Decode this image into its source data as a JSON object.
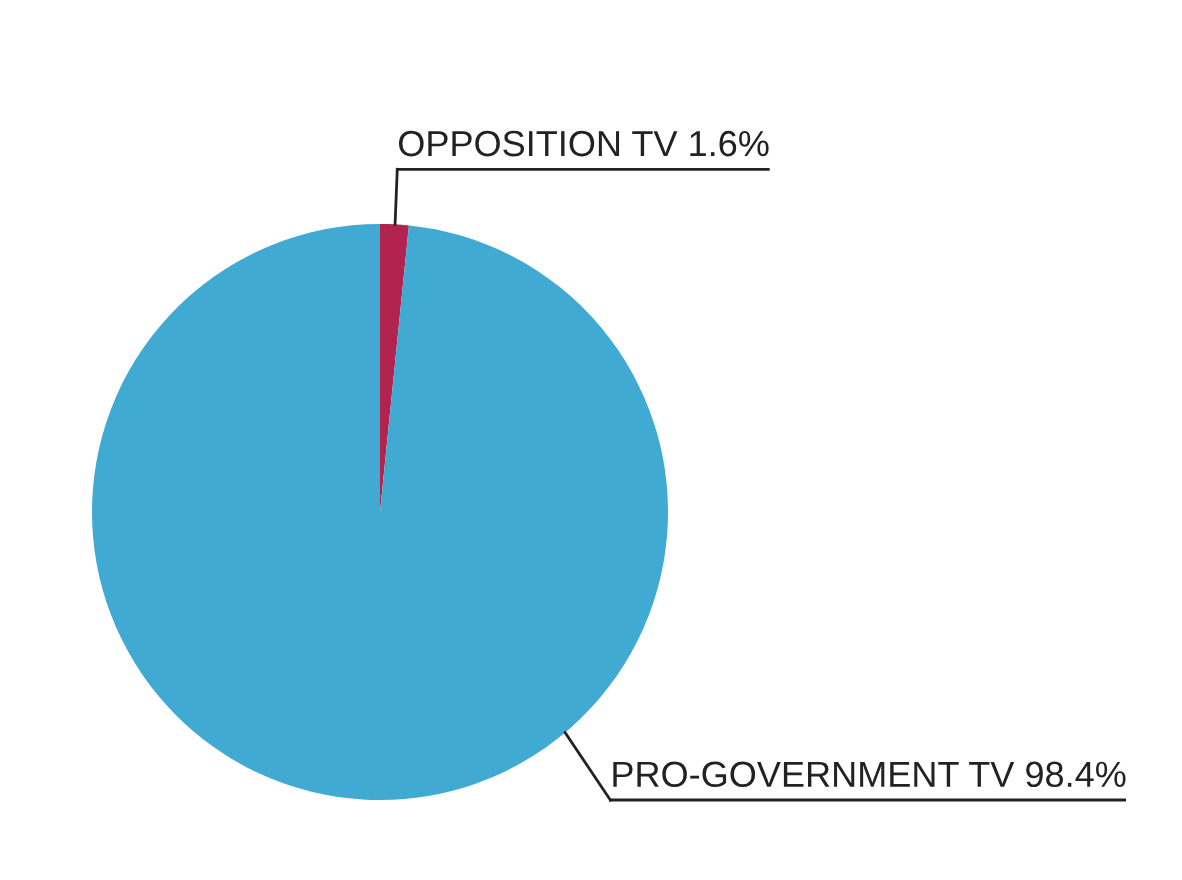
{
  "chart_data": {
    "type": "pie",
    "categories": [
      "OPPOSITION TV",
      "PRO-GOVERNMENT TV"
    ],
    "values": [
      1.6,
      98.4
    ],
    "value_labels": [
      "1.6%",
      "98.4%"
    ],
    "colors": [
      "#b3234f",
      "#40aad2"
    ]
  }
}
